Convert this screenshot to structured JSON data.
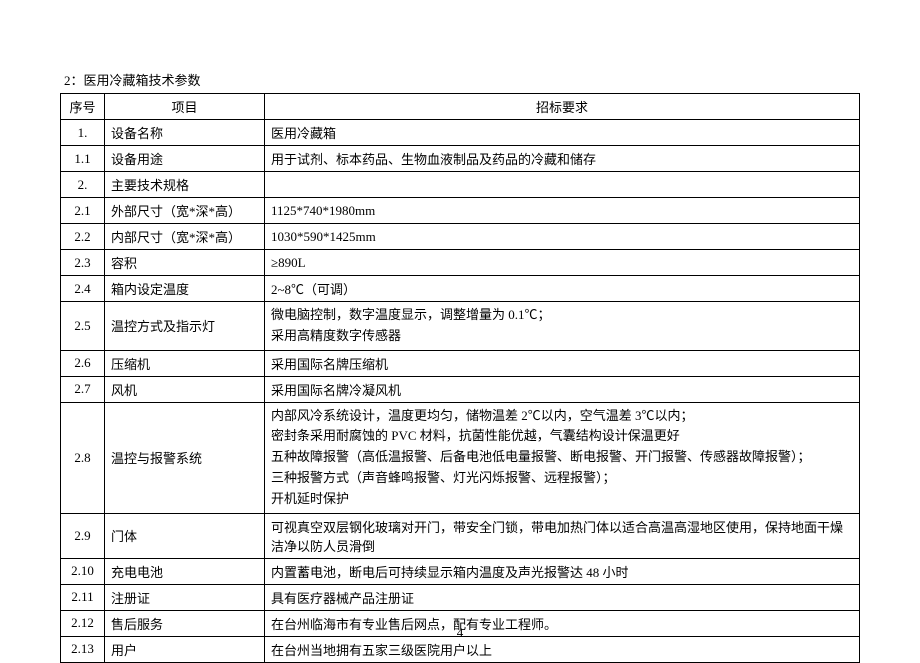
{
  "title": "2：医用冷藏箱技术参数",
  "pageNumber": "4",
  "headers": {
    "seq": "序号",
    "item": "项目",
    "req": "招标要求"
  },
  "rows": [
    {
      "seq": "1.",
      "item": "设备名称",
      "req": "医用冷藏箱"
    },
    {
      "seq": "1.1",
      "item": "设备用途",
      "req": "用于试剂、标本药品、生物血液制品及药品的冷藏和储存"
    },
    {
      "seq": "2.",
      "item": "主要技术规格",
      "req": ""
    },
    {
      "seq": "2.1",
      "item": "外部尺寸（宽*深*高）",
      "req": "1125*740*1980mm"
    },
    {
      "seq": "2.2",
      "item": "内部尺寸（宽*深*高）",
      "req": "1030*590*1425mm"
    },
    {
      "seq": "2.3",
      "item": "容积",
      "req": "≥890L"
    },
    {
      "seq": "2.4",
      "item": "箱内设定温度",
      "req": "2~8℃（可调）"
    },
    {
      "seq": "2.5",
      "item": "温控方式及指示灯",
      "req": "微电脑控制，数字温度显示，调整增量为 0.1℃；\n采用高精度数字传感器"
    },
    {
      "seq": "2.6",
      "item": "压缩机",
      "req": "采用国际名牌压缩机"
    },
    {
      "seq": "2.7",
      "item": "风机",
      "req": "采用国际名牌冷凝风机"
    },
    {
      "seq": "2.8",
      "item": "温控与报警系统",
      "req": "内部风冷系统设计，温度更均匀，储物温差 2℃以内，空气温差 3℃以内；\n密封条采用耐腐蚀的 PVC 材料，抗菌性能优越，气囊结构设计保温更好\n五种故障报警（高低温报警、后备电池低电量报警、断电报警、开门报警、传感器故障报警）；\n三种报警方式（声音蜂鸣报警、灯光闪烁报警、远程报警）；\n开机延时保护"
    },
    {
      "seq": "2.9",
      "item": "门体",
      "req": "可视真空双层钢化玻璃对开门，带安全门锁，带电加热门体以适合高温高湿地区使用，保持地面干燥洁净以防人员滑倒"
    },
    {
      "seq": "2.10",
      "item": "充电电池",
      "req": "内置蓄电池，断电后可持续显示箱内温度及声光报警达 48 小时"
    },
    {
      "seq": "2.11",
      "item": "注册证",
      "req": "具有医疗器械产品注册证"
    },
    {
      "seq": "2.12",
      "item": "售后服务",
      "req": "在台州临海市有专业售后网点，配有专业工程师。"
    },
    {
      "seq": "2.13",
      "item": "用户",
      "req": "在台州当地拥有五家三级医院用户以上"
    }
  ]
}
